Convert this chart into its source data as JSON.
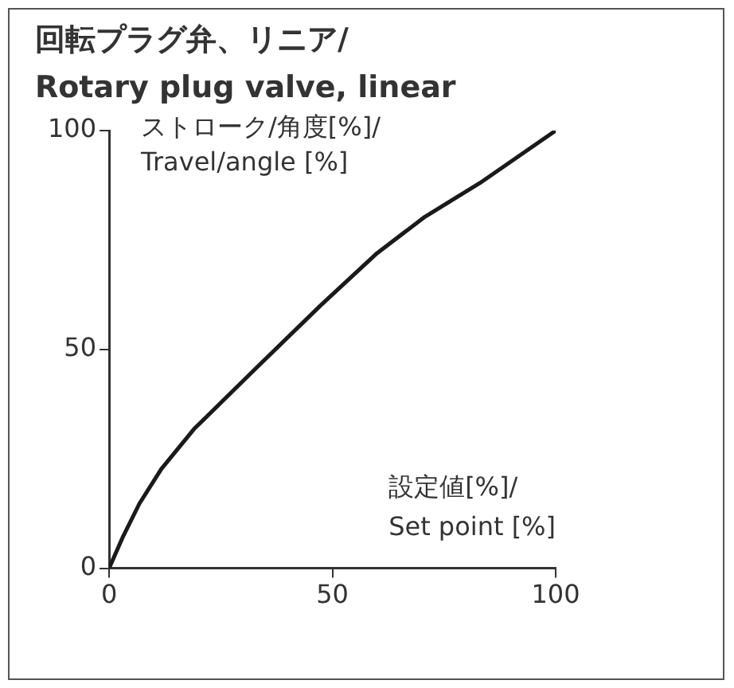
{
  "chart_data": {
    "type": "line",
    "title": "回転プラグ弁、リニア/\nRotary plug valve, linear",
    "xlabel": "設定値[%]/\nSet point [%]",
    "ylabel": "ストローク/角度[%]/\nTravel/angle [%]",
    "x": [
      0,
      3,
      6.8,
      11.7,
      19,
      32.6,
      47.3,
      60,
      70.7,
      83,
      100
    ],
    "series": [
      {
        "color": "#1a1a1a",
        "values": [
          0,
          7,
          14.8,
          22.7,
          31.8,
          45.4,
          60,
          72,
          80.3,
          88,
          100
        ]
      }
    ],
    "xlim": [
      0,
      100
    ],
    "xticks": [
      0,
      50,
      100
    ],
    "ylim": [
      0,
      100
    ],
    "yticks": [
      0,
      50,
      100
    ],
    "grid": false,
    "legend": false,
    "marker": "none",
    "line_style": "solid"
  }
}
